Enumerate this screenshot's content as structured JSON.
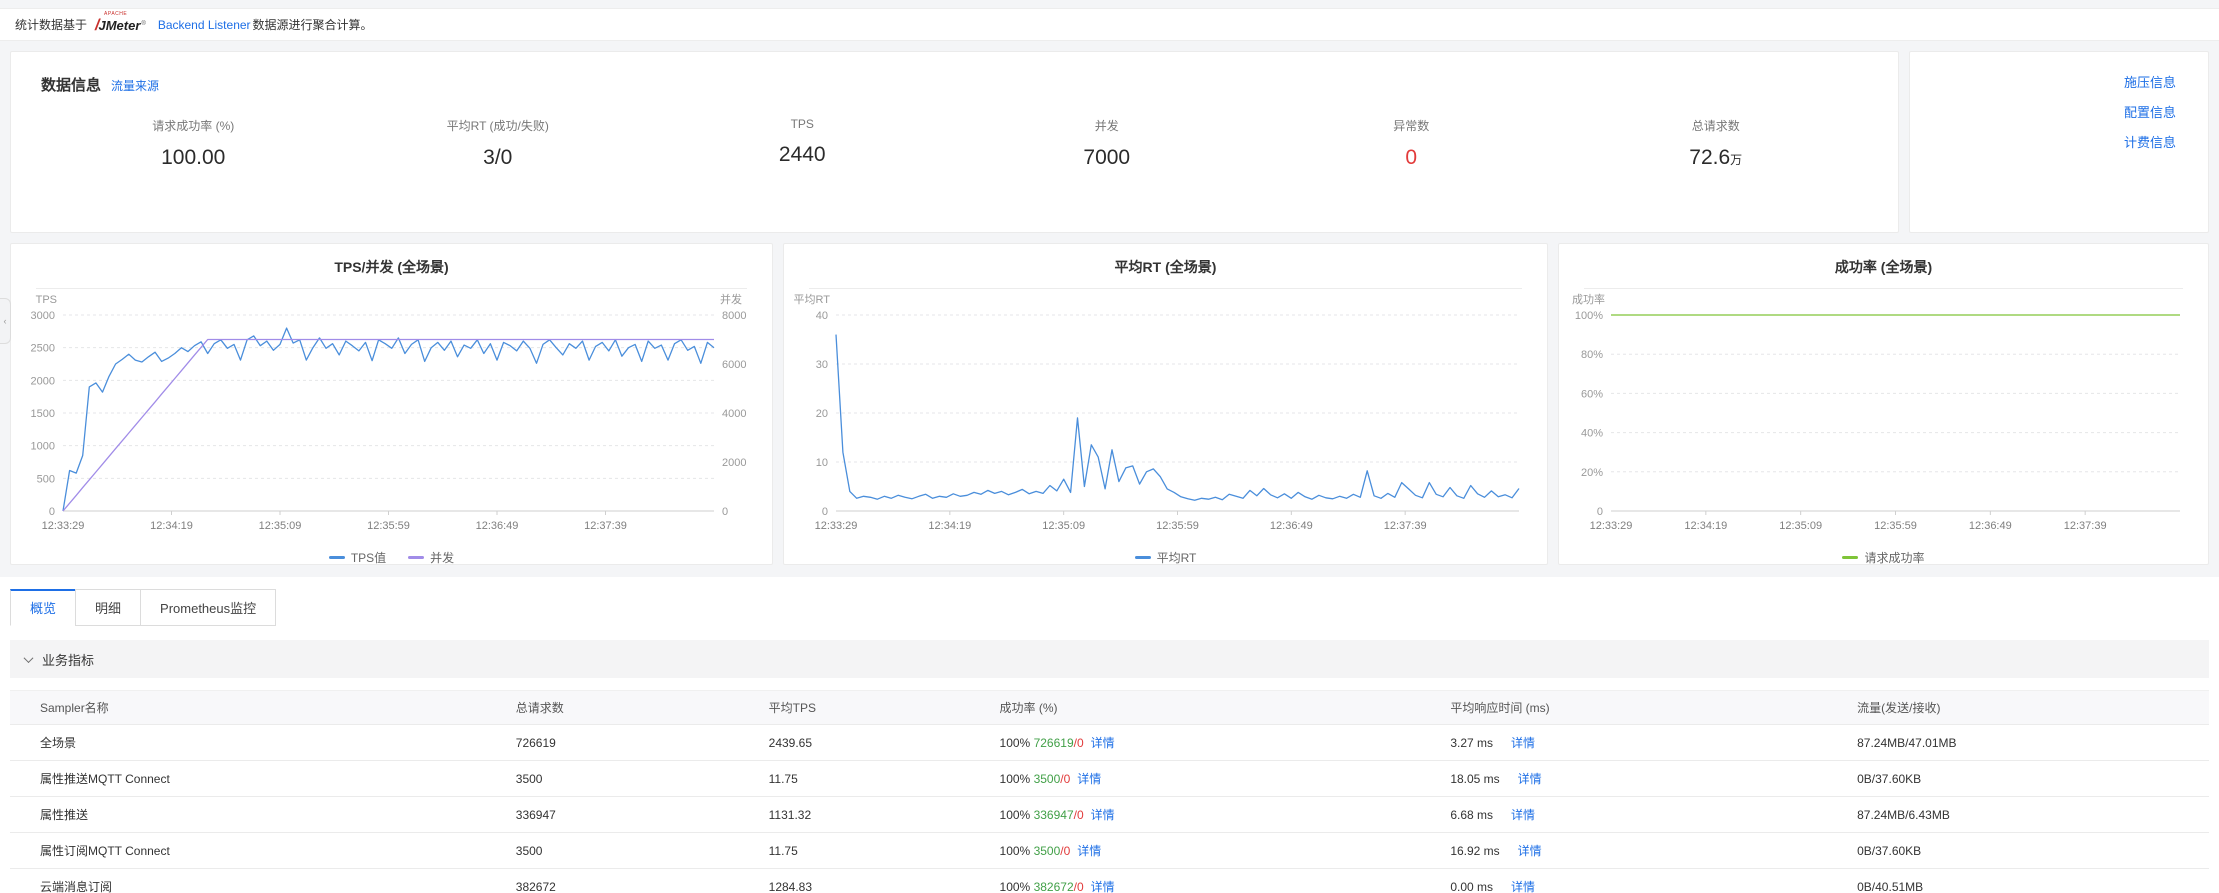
{
  "colors": {
    "link": "#1e6fe6",
    "error": "#e23b3b",
    "success": "#42a048"
  },
  "notice": {
    "prefix": "统计数据基于",
    "logo_apache": "APACHE",
    "logo_feather": "/",
    "logo_jmeter": "JMeter",
    "logo_reg": "®",
    "link": "Backend Listener",
    "suffix": "数据源进行聚合计算。"
  },
  "info": {
    "title": "数据信息",
    "source_link": "流量来源",
    "metrics": [
      {
        "label": "请求成功率 (%)",
        "value": "100.00",
        "suffix": ""
      },
      {
        "label": "平均RT (成功/失败)",
        "value": "3/0",
        "suffix": ""
      },
      {
        "label": "TPS",
        "value": "2440",
        "suffix": ""
      },
      {
        "label": "并发",
        "value": "7000",
        "suffix": ""
      },
      {
        "label": "异常数",
        "value": "0",
        "suffix": "",
        "color": "#e23b3b"
      },
      {
        "label": "总请求数",
        "value": "72.6",
        "suffix": "万"
      }
    ],
    "links": [
      "施压信息",
      "配置信息",
      "计费信息"
    ]
  },
  "chart_data": [
    {
      "type": "line",
      "title": "TPS/并发 (全场景)",
      "x_ticks": [
        "12:33:29",
        "12:34:19",
        "12:35:09",
        "12:35:59",
        "12:36:49",
        "12:37:39"
      ],
      "left_axis": {
        "label": "TPS",
        "max": 3000,
        "ticks": [
          0,
          500,
          1000,
          1500,
          2000,
          2500,
          3000
        ]
      },
      "right_axis": {
        "label": "并发",
        "max": 8000,
        "ticks": [
          0,
          2000,
          4000,
          6000,
          8000
        ]
      },
      "legend_position": "bottom",
      "grid": true,
      "series": [
        {
          "name": "TPS值",
          "color": "#4a8edb",
          "axis": "left",
          "values": [
            0,
            620,
            580,
            850,
            1900,
            1960,
            1820,
            2060,
            2250,
            2320,
            2400,
            2310,
            2280,
            2360,
            2430,
            2290,
            2340,
            2410,
            2500,
            2440,
            2530,
            2590,
            2410,
            2560,
            2620,
            2490,
            2550,
            2310,
            2620,
            2680,
            2530,
            2600,
            2460,
            2550,
            2800,
            2570,
            2620,
            2310,
            2500,
            2650,
            2490,
            2560,
            2390,
            2600,
            2530,
            2450,
            2580,
            2300,
            2620,
            2560,
            2490,
            2650,
            2410,
            2550,
            2620,
            2290,
            2500,
            2580,
            2460,
            2600,
            2360,
            2540,
            2490,
            2620,
            2410,
            2560,
            2310,
            2580,
            2530,
            2450,
            2600,
            2490,
            2260,
            2550,
            2620,
            2500,
            2390,
            2560,
            2490,
            2600,
            2310,
            2520,
            2580,
            2450,
            2620,
            2370,
            2500,
            2550,
            2290,
            2600,
            2490,
            2540,
            2310,
            2560,
            2620,
            2460,
            2520,
            2260,
            2580,
            2500
          ]
        },
        {
          "name": "并发",
          "color": "#a18ce8",
          "axis": "right",
          "values": [
            0,
            318,
            636,
            955,
            1273,
            1591,
            1909,
            2227,
            2545,
            2864,
            3182,
            3500,
            3818,
            4136,
            4455,
            4773,
            5091,
            5409,
            5727,
            6045,
            6364,
            6682,
            7000,
            7000,
            7000,
            7000,
            7000,
            7000,
            7000,
            7000,
            7000,
            7000,
            7000,
            7000,
            7000,
            7000,
            7000,
            7000,
            7000,
            7000,
            7000,
            7000,
            7000,
            7000,
            7000,
            7000,
            7000,
            7000,
            7000,
            7000,
            7000,
            7000,
            7000,
            7000,
            7000,
            7000,
            7000,
            7000,
            7000,
            7000,
            7000,
            7000,
            7000,
            7000,
            7000,
            7000,
            7000,
            7000,
            7000,
            7000,
            7000,
            7000,
            7000,
            7000,
            7000,
            7000,
            7000,
            7000,
            7000,
            7000,
            7000,
            7000,
            7000,
            7000,
            7000,
            7000,
            7000,
            7000,
            7000,
            7000,
            7000,
            7000,
            7000,
            7000,
            7000,
            7000,
            7000,
            7000,
            7000,
            7000
          ]
        }
      ]
    },
    {
      "type": "line",
      "title": "平均RT (全场景)",
      "x_ticks": [
        "12:33:29",
        "12:34:19",
        "12:35:09",
        "12:35:59",
        "12:36:49",
        "12:37:39"
      ],
      "left_axis": {
        "label": "平均RT",
        "max": 40,
        "ticks": [
          0,
          10,
          20,
          30,
          40
        ]
      },
      "legend_position": "bottom",
      "grid": true,
      "series": [
        {
          "name": "平均RT",
          "color": "#4a8edb",
          "axis": "left",
          "values": [
            36,
            12,
            4,
            2.6,
            3,
            2.8,
            2.4,
            3,
            2.6,
            3.2,
            2.8,
            2.5,
            3,
            3.4,
            2.6,
            3,
            2.8,
            3.5,
            3,
            3.2,
            3.8,
            3.4,
            4.2,
            3.6,
            4,
            3.3,
            3.8,
            4.4,
            3.5,
            4,
            3.6,
            5.2,
            4.1,
            6.5,
            3.8,
            19,
            5,
            13.5,
            11,
            4.5,
            12.5,
            6,
            8.8,
            9.2,
            5.5,
            8,
            8.6,
            7,
            4.5,
            3.8,
            2.9,
            2.5,
            2.2,
            2.6,
            2.4,
            2.8,
            2.3,
            3.4,
            3,
            2.6,
            4.2,
            3.1,
            4.6,
            3.3,
            2.7,
            3.5,
            2.6,
            3.8,
            2.9,
            2.4,
            3.2,
            2.7,
            2.5,
            3,
            2.6,
            3.4,
            2.8,
            8.2,
            3.1,
            2.6,
            3.6,
            2.8,
            5.8,
            4.5,
            3.2,
            2.7,
            5.8,
            3.4,
            2.9,
            4.8,
            3.1,
            2.6,
            5.2,
            3.5,
            2.8,
            4.1,
            2.9,
            3.3,
            2.7,
            4.6
          ]
        }
      ]
    },
    {
      "type": "line",
      "title": "成功率 (全场景)",
      "x_ticks": [
        "12:33:29",
        "12:34:19",
        "12:35:09",
        "12:35:59",
        "12:36:49",
        "12:37:39"
      ],
      "left_axis": {
        "label": "成功率",
        "max": 100,
        "ticks": [
          0,
          20,
          40,
          60,
          80,
          100
        ],
        "tick_labels": [
          "0",
          "20%",
          "40%",
          "60%",
          "80%",
          "100%"
        ]
      },
      "legend_position": "bottom",
      "grid": true,
      "series": [
        {
          "name": "请求成功率",
          "color": "#7fc438",
          "axis": "left",
          "values": [
            100,
            100
          ]
        }
      ]
    }
  ],
  "tabs": [
    {
      "label": "概览",
      "active": true
    },
    {
      "label": "明细",
      "active": false
    },
    {
      "label": "Prometheus监控",
      "active": false
    }
  ],
  "section": {
    "title": "业务指标"
  },
  "table": {
    "headers": [
      "Sampler名称",
      "总请求数",
      "平均TPS",
      "成功率 (%)",
      "平均响应时间 (ms)",
      "流量(发送/接收)"
    ],
    "detail_label": "详情",
    "rows": [
      {
        "name": "全场景",
        "requests": "726619",
        "tps": "2439.65",
        "rate": "100%",
        "success": "726619",
        "fail": "/0",
        "rt": "3.27 ms",
        "traffic": "87.24MB/47.01MB"
      },
      {
        "name": "属性推送MQTT Connect",
        "requests": "3500",
        "tps": "11.75",
        "rate": "100%",
        "success": "3500",
        "fail": "/0",
        "rt": "18.05 ms",
        "traffic": "0B/37.60KB"
      },
      {
        "name": "属性推送",
        "requests": "336947",
        "tps": "1131.32",
        "rate": "100%",
        "success": "336947",
        "fail": "/0",
        "rt": "6.68 ms",
        "traffic": "87.24MB/6.43MB"
      },
      {
        "name": "属性订阅MQTT Connect",
        "requests": "3500",
        "tps": "11.75",
        "rate": "100%",
        "success": "3500",
        "fail": "/0",
        "rt": "16.92 ms",
        "traffic": "0B/37.60KB"
      },
      {
        "name": "云端消息订阅",
        "requests": "382672",
        "tps": "1284.83",
        "rate": "100%",
        "success": "382672",
        "fail": "/0",
        "rt": "0.00 ms",
        "traffic": "0B/40.51MB"
      }
    ]
  }
}
